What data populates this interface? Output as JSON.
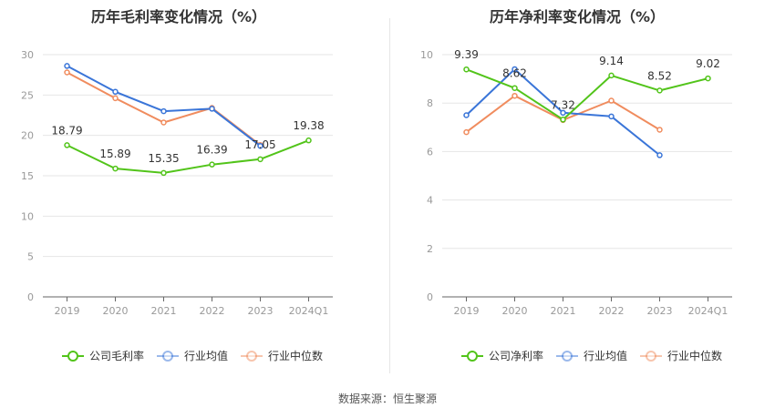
{
  "source_text": "数据来源：恒生聚源",
  "colors": {
    "company": "#52c41a",
    "avg": "#3a75d8",
    "median": "#f08c5e",
    "grid": "#e6e6e6",
    "axis": "#999999"
  },
  "chart_data": [
    {
      "type": "line",
      "title": "历年毛利率变化情况（%）",
      "categories": [
        "2019",
        "2020",
        "2021",
        "2022",
        "2023",
        "2024Q1"
      ],
      "ylim": [
        0,
        30
      ],
      "yticks": [
        0,
        5,
        10,
        15,
        20,
        25,
        30
      ],
      "grid": true,
      "legend_position": "bottom",
      "series": [
        {
          "name": "公司毛利率",
          "values": [
            18.79,
            15.89,
            15.35,
            16.39,
            17.05,
            19.38
          ],
          "labels": [
            "18.79",
            "15.89",
            "15.35",
            "16.39",
            "17.05",
            "19.38"
          ],
          "color": "#52c41a"
        },
        {
          "name": "行业均值",
          "values": [
            28.6,
            25.4,
            23.0,
            23.3,
            18.7,
            null
          ],
          "color": "#3a75d8"
        },
        {
          "name": "行业中位数",
          "values": [
            27.8,
            24.6,
            21.6,
            23.4,
            18.8,
            null
          ],
          "color": "#f08c5e"
        }
      ]
    },
    {
      "type": "line",
      "title": "历年净利率变化情况（%）",
      "categories": [
        "2019",
        "2020",
        "2021",
        "2022",
        "2023",
        "2024Q1"
      ],
      "ylim": [
        0,
        10
      ],
      "yticks": [
        0,
        2,
        4,
        6,
        8,
        10
      ],
      "grid": true,
      "legend_position": "bottom",
      "series": [
        {
          "name": "公司净利率",
          "values": [
            9.39,
            8.62,
            7.32,
            9.14,
            8.52,
            9.02
          ],
          "labels": [
            "9.39",
            "8.62",
            "7.32",
            "9.14",
            "8.52",
            "9.02"
          ],
          "color": "#52c41a"
        },
        {
          "name": "行业均值",
          "values": [
            7.5,
            9.4,
            7.6,
            7.45,
            5.85,
            null
          ],
          "color": "#3a75d8"
        },
        {
          "name": "行业中位数",
          "values": [
            6.8,
            8.3,
            7.3,
            8.1,
            6.9,
            null
          ],
          "color": "#f08c5e"
        }
      ]
    }
  ]
}
